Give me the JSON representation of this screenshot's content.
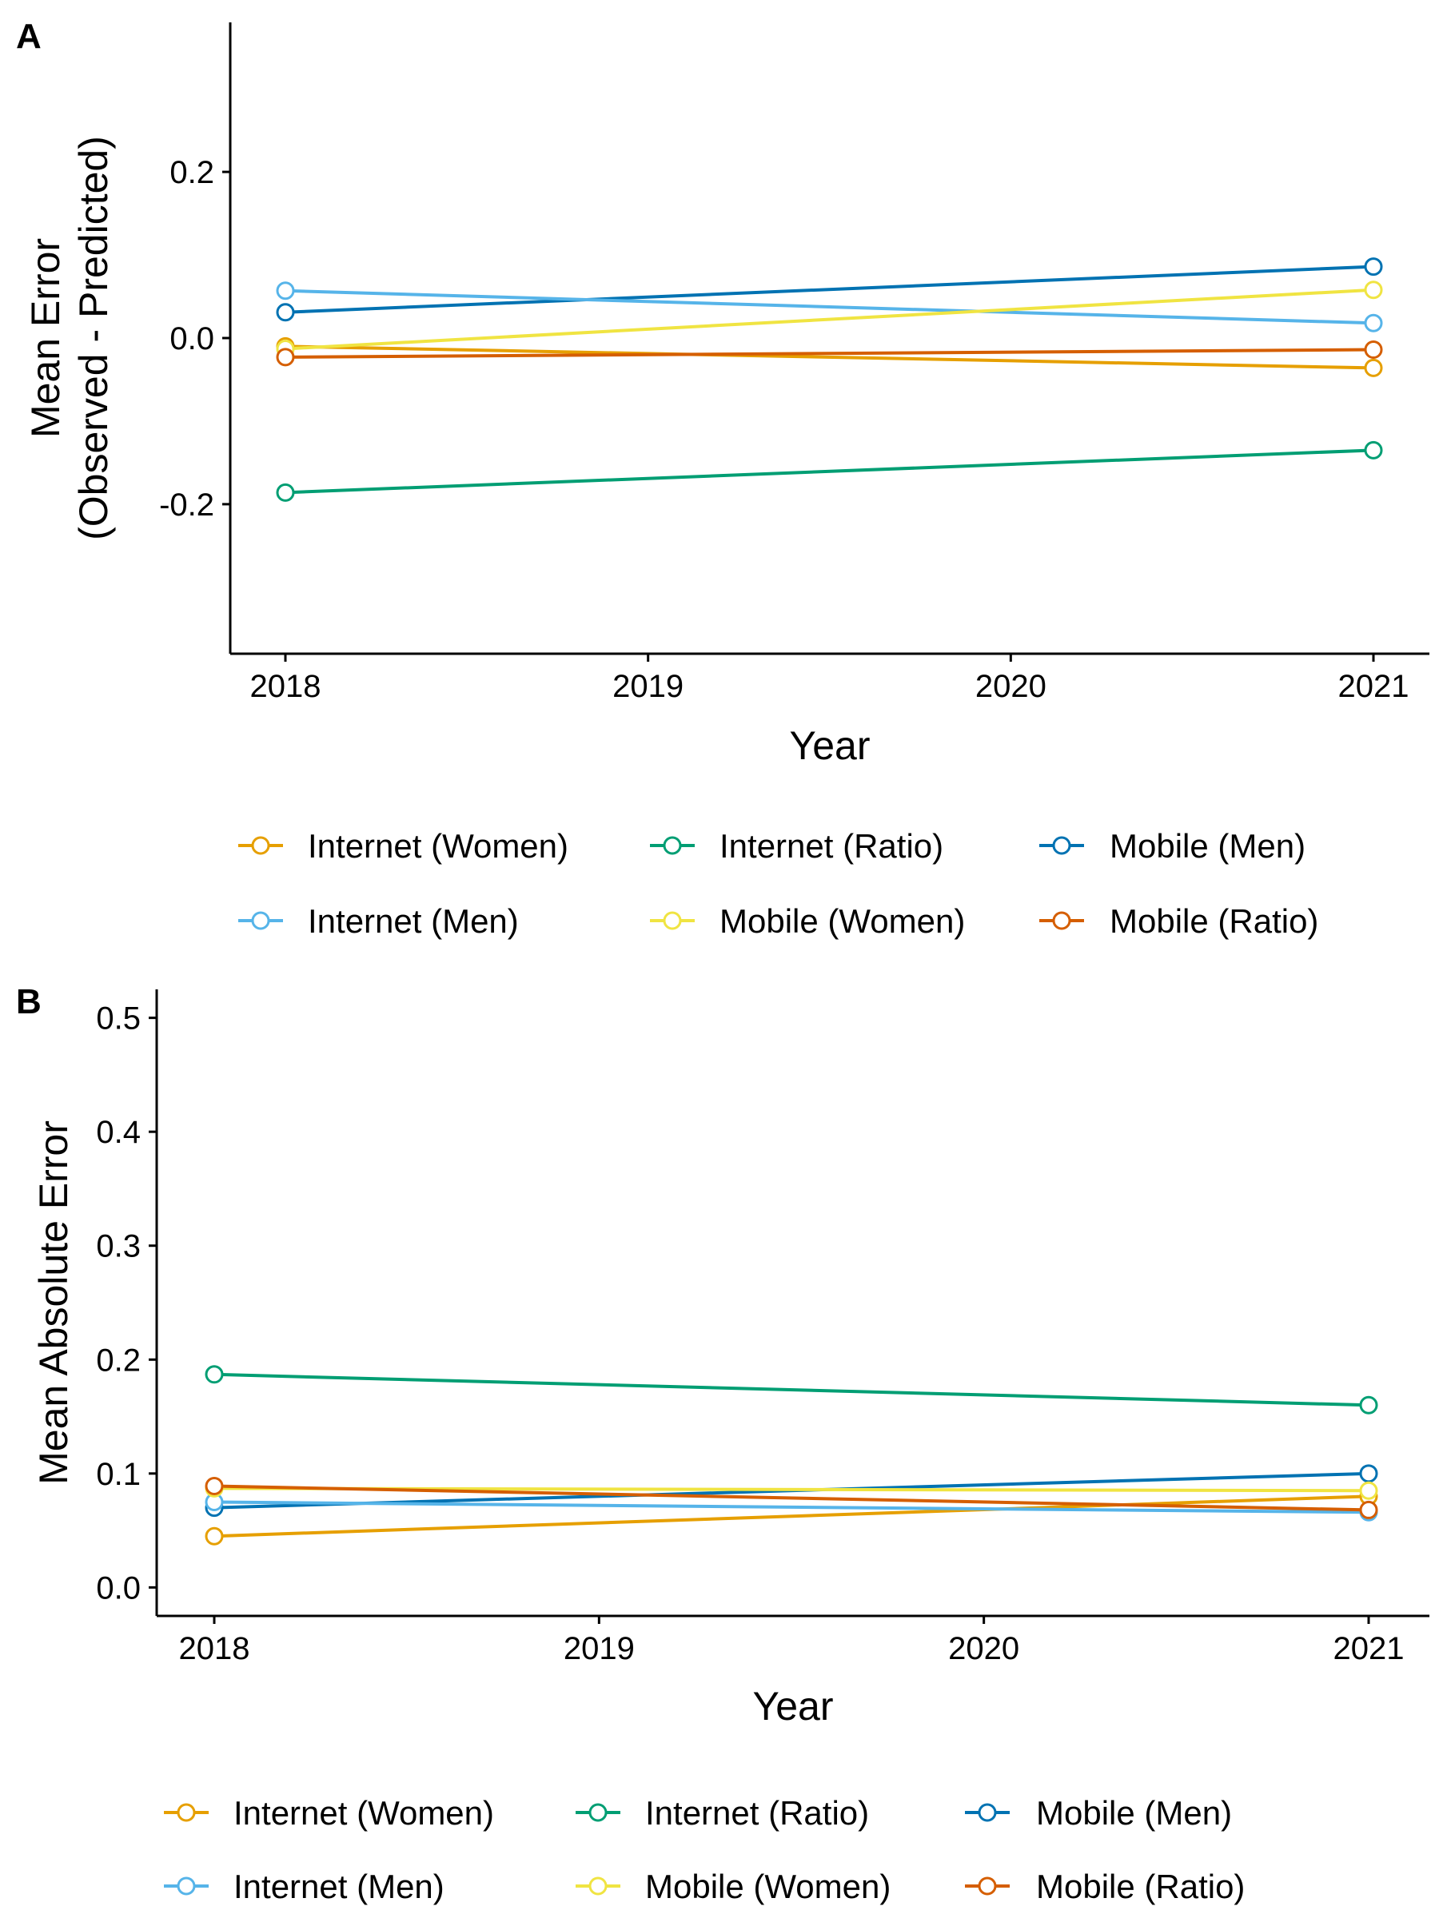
{
  "chart_data": [
    {
      "panel_label": "A",
      "type": "line",
      "x": [
        2018,
        2021
      ],
      "xticks": [
        "2018",
        "2019",
        "2020",
        "2021"
      ],
      "xlabel": "Year",
      "ylabel": [
        "Mean Error",
        "(Observed - Predicted)"
      ],
      "ylim": [
        -0.38,
        0.38
      ],
      "yticks": [
        "-0.2",
        "0.0",
        "0.2"
      ],
      "series": [
        {
          "name": "Internet (Women)",
          "color": "#E69F00",
          "values": [
            -0.01,
            -0.036
          ]
        },
        {
          "name": "Internet (Ratio)",
          "color": "#009E73",
          "values": [
            -0.186,
            -0.135
          ]
        },
        {
          "name": "Mobile (Men)",
          "color": "#0072B2",
          "values": [
            0.031,
            0.086
          ]
        },
        {
          "name": "Internet (Men)",
          "color": "#56B4E9",
          "values": [
            0.057,
            0.018
          ]
        },
        {
          "name": "Mobile (Women)",
          "color": "#F0E442",
          "values": [
            -0.013,
            0.058
          ]
        },
        {
          "name": "Mobile (Ratio)",
          "color": "#D55E00",
          "values": [
            -0.023,
            -0.014
          ]
        }
      ],
      "grid": false,
      "legend": "bottom"
    },
    {
      "panel_label": "B",
      "type": "line",
      "x": [
        2018,
        2021
      ],
      "xticks": [
        "2018",
        "2019",
        "2020",
        "2021"
      ],
      "xlabel": "Year",
      "ylabel": [
        "Mean Absolute Error"
      ],
      "ylim": [
        -0.025,
        0.525
      ],
      "yticks": [
        "0.0",
        "0.1",
        "0.2",
        "0.3",
        "0.4",
        "0.5"
      ],
      "series": [
        {
          "name": "Internet (Women)",
          "color": "#E69F00",
          "values": [
            0.045,
            0.08
          ]
        },
        {
          "name": "Internet (Ratio)",
          "color": "#009E73",
          "values": [
            0.187,
            0.16
          ]
        },
        {
          "name": "Mobile (Men)",
          "color": "#0072B2",
          "values": [
            0.07,
            0.1
          ]
        },
        {
          "name": "Internet (Men)",
          "color": "#56B4E9",
          "values": [
            0.075,
            0.066
          ]
        },
        {
          "name": "Mobile (Women)",
          "color": "#F0E442",
          "values": [
            0.087,
            0.085
          ]
        },
        {
          "name": "Mobile (Ratio)",
          "color": "#D55E00",
          "values": [
            0.089,
            0.068
          ]
        }
      ],
      "grid": false,
      "legend": "bottom"
    }
  ]
}
